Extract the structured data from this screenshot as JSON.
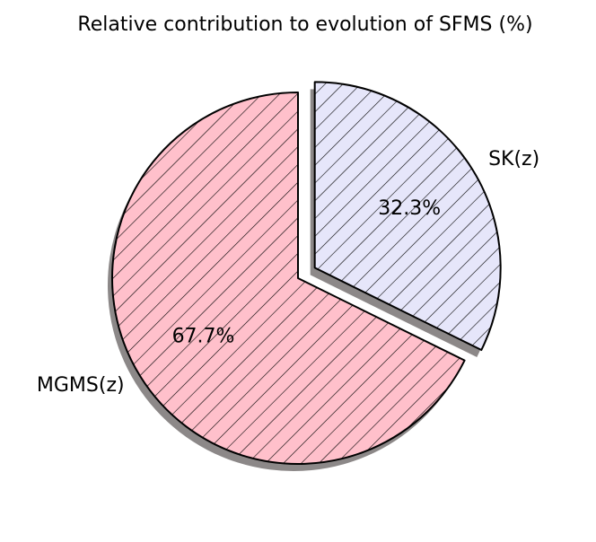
{
  "chart_data": {
    "type": "pie",
    "title": "Relative contribution to evolution of SFMS (%)",
    "slices": [
      {
        "label": "SK(z)",
        "value": 32.3,
        "value_label": "32.3%",
        "color": "#e6e6fa",
        "hatch": true,
        "exploded": true
      },
      {
        "label": "MGMS(z)",
        "value": 67.7,
        "value_label": "67.7%",
        "color": "#ffc0cb",
        "hatch": true,
        "exploded": false
      }
    ],
    "start_angle_deg": 90,
    "direction": "clockwise",
    "shadow": true
  }
}
